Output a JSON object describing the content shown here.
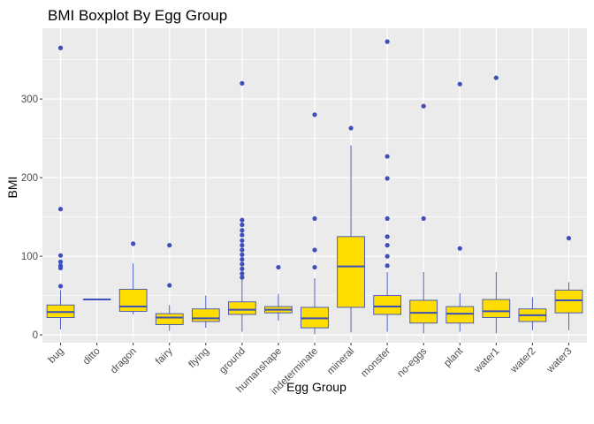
{
  "chart_data": {
    "type": "boxplot",
    "title": "BMI Boxplot By Egg Group",
    "xlabel": "Egg Group",
    "ylabel": "BMI",
    "ylim": [
      -10,
      390
    ],
    "yticks": [
      0,
      100,
      200,
      300
    ],
    "grid": true,
    "legend": "none",
    "colors": {
      "panel_background": "#ebebeb",
      "grid": "#ffffff",
      "box_fill": "#ffdd00",
      "box_stroke": "#3d4fb8",
      "outlier": "#3d4fb8"
    },
    "categories": [
      "bug",
      "ditto",
      "dragon",
      "fairy",
      "flying",
      "ground",
      "humanshape",
      "indeterminate",
      "mineral",
      "monster",
      "no-eggs",
      "plant",
      "water1",
      "water2",
      "water3"
    ],
    "boxes": [
      {
        "category": "bug",
        "min": 7,
        "q1": 22,
        "median": 29,
        "q3": 38,
        "max": 57,
        "outliers": [
          365,
          160,
          101,
          93,
          88,
          85,
          62
        ]
      },
      {
        "category": "ditto",
        "min": 45,
        "q1": 45,
        "median": 45,
        "q3": 45,
        "max": 45,
        "outliers": []
      },
      {
        "category": "dragon",
        "min": 26,
        "q1": 30,
        "median": 36,
        "q3": 58,
        "max": 91,
        "outliers": [
          116
        ]
      },
      {
        "category": "fairy",
        "min": 5,
        "q1": 13,
        "median": 22,
        "q3": 27,
        "max": 38,
        "outliers": [
          114,
          63
        ]
      },
      {
        "category": "flying",
        "min": 9,
        "q1": 17,
        "median": 21,
        "q3": 33,
        "max": 50,
        "outliers": []
      },
      {
        "category": "ground",
        "min": 4,
        "q1": 26,
        "median": 32,
        "q3": 42,
        "max": 70,
        "outliers": [
          320,
          146,
          140,
          133,
          127,
          120,
          114,
          108,
          102,
          96,
          90,
          84,
          78,
          73
        ]
      },
      {
        "category": "humanshape",
        "min": 18,
        "q1": 28,
        "median": 32,
        "q3": 36,
        "max": 52,
        "outliers": [
          86
        ]
      },
      {
        "category": "indeterminate",
        "min": 1,
        "q1": 9,
        "median": 21,
        "q3": 35,
        "max": 72,
        "outliers": [
          280,
          148,
          108,
          86
        ]
      },
      {
        "category": "mineral",
        "min": 3,
        "q1": 35,
        "median": 87,
        "q3": 125,
        "max": 241,
        "outliers": [
          263
        ]
      },
      {
        "category": "monster",
        "min": 4,
        "q1": 26,
        "median": 36,
        "q3": 50,
        "max": 80,
        "outliers": [
          373,
          227,
          199,
          148,
          125,
          114,
          100,
          88
        ]
      },
      {
        "category": "no-eggs",
        "min": 2,
        "q1": 15,
        "median": 28,
        "q3": 44,
        "max": 80,
        "outliers": [
          291,
          148
        ]
      },
      {
        "category": "plant",
        "min": 4,
        "q1": 15,
        "median": 27,
        "q3": 36,
        "max": 53,
        "outliers": [
          319,
          110
        ]
      },
      {
        "category": "water1",
        "min": 2,
        "q1": 22,
        "median": 30,
        "q3": 45,
        "max": 80,
        "outliers": [
          327
        ]
      },
      {
        "category": "water2",
        "min": 6,
        "q1": 17,
        "median": 25,
        "q3": 33,
        "max": 48,
        "outliers": []
      },
      {
        "category": "water3",
        "min": 6,
        "q1": 28,
        "median": 44,
        "q3": 57,
        "max": 67,
        "outliers": [
          123
        ]
      }
    ]
  }
}
